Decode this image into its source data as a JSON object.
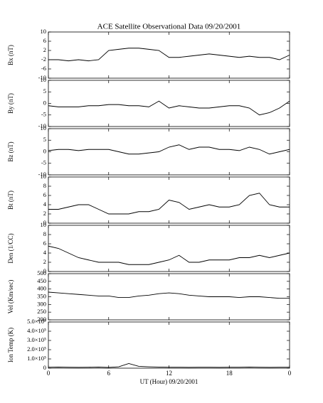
{
  "chart_data": [
    {
      "type": "line",
      "title": "ACE Satellite Observational Data  09/20/2001",
      "ylabel": "Bx (nT)",
      "color": "#000000",
      "x": [
        0,
        1,
        2,
        3,
        4,
        5,
        6,
        7,
        8,
        9,
        10,
        11,
        12,
        13,
        14,
        15,
        16,
        17,
        18,
        19,
        20,
        21,
        22,
        23,
        24
      ],
      "values": [
        -2,
        -2,
        -2.5,
        -2,
        -2.5,
        -2,
        2,
        2.5,
        3,
        3,
        2.5,
        2,
        -1,
        -1,
        -0.5,
        0,
        0.5,
        0,
        -0.5,
        -1,
        -0.5,
        -1,
        -1,
        -2,
        0
      ],
      "xlim": [
        0,
        24
      ],
      "ylim": [
        -10,
        10
      ],
      "yticks": [
        -10,
        -6,
        -2,
        2,
        6,
        10
      ]
    },
    {
      "type": "line",
      "ylabel": "By (nT)",
      "color": "#000000",
      "x": [
        0,
        1,
        2,
        3,
        4,
        5,
        6,
        7,
        8,
        9,
        10,
        11,
        12,
        13,
        14,
        15,
        16,
        17,
        18,
        19,
        20,
        21,
        22,
        23,
        24
      ],
      "values": [
        -1,
        -1.5,
        -1.5,
        -1.5,
        -1,
        -1,
        -0.5,
        -0.5,
        -1,
        -1,
        -1.5,
        1,
        -2,
        -1,
        -1.5,
        -2,
        -2,
        -1.5,
        -1,
        -1,
        -2,
        -5,
        -4,
        -2,
        1
      ],
      "xlim": [
        0,
        24
      ],
      "ylim": [
        -10,
        10
      ],
      "yticks": [
        -10,
        -5,
        0,
        5,
        10
      ]
    },
    {
      "type": "line",
      "ylabel": "Bz (nT)",
      "color": "#000000",
      "x": [
        0,
        1,
        2,
        3,
        4,
        5,
        6,
        7,
        8,
        9,
        10,
        11,
        12,
        13,
        14,
        15,
        16,
        17,
        18,
        19,
        20,
        21,
        22,
        23,
        24
      ],
      "values": [
        0.5,
        1,
        1,
        0.5,
        1,
        1,
        1,
        0,
        -1,
        -1,
        -0.5,
        0,
        2,
        3,
        1,
        2,
        2,
        1,
        1,
        0.5,
        2,
        1,
        -1,
        0,
        1
      ],
      "xlim": [
        0,
        24
      ],
      "ylim": [
        -10,
        10
      ],
      "yticks": [
        -10,
        -5,
        0,
        5,
        10
      ]
    },
    {
      "type": "line",
      "ylabel": "Bt (nT)",
      "color": "#000000",
      "x": [
        0,
        1,
        2,
        3,
        4,
        5,
        6,
        7,
        8,
        9,
        10,
        11,
        12,
        13,
        14,
        15,
        16,
        17,
        18,
        19,
        20,
        21,
        22,
        23,
        24
      ],
      "values": [
        3,
        3,
        3.5,
        4,
        4,
        3,
        2,
        2,
        2,
        2.5,
        2.5,
        3,
        5,
        4.5,
        3,
        3.5,
        4,
        3.5,
        3.5,
        4,
        6,
        6.5,
        4,
        3.5,
        3.5
      ],
      "xlim": [
        0,
        24
      ],
      "ylim": [
        0,
        10
      ],
      "yticks": [
        0,
        2,
        4,
        6,
        8,
        10
      ]
    },
    {
      "type": "line",
      "ylabel": "Den (1/CC)",
      "color": "#000000",
      "x": [
        0,
        1,
        2,
        3,
        4,
        5,
        6,
        7,
        8,
        9,
        10,
        11,
        12,
        13,
        14,
        15,
        16,
        17,
        18,
        19,
        20,
        21,
        22,
        23,
        24
      ],
      "values": [
        5.5,
        5,
        4,
        3,
        2.5,
        2,
        2,
        2,
        1.5,
        1.5,
        1.5,
        2,
        2.5,
        3.5,
        2,
        2,
        2.5,
        2.5,
        2.5,
        3,
        3,
        3.5,
        3,
        3.5,
        4
      ],
      "xlim": [
        0,
        24
      ],
      "ylim": [
        0,
        10
      ],
      "yticks": [
        0,
        2,
        4,
        6,
        8,
        10
      ]
    },
    {
      "type": "line",
      "ylabel": "Vel (Km/sec)",
      "color": "#000000",
      "x": [
        0,
        1,
        2,
        3,
        4,
        5,
        6,
        7,
        8,
        9,
        10,
        11,
        12,
        13,
        14,
        15,
        16,
        17,
        18,
        19,
        20,
        21,
        22,
        23,
        24
      ],
      "values": [
        380,
        375,
        370,
        365,
        360,
        355,
        355,
        345,
        345,
        355,
        360,
        370,
        375,
        370,
        360,
        355,
        350,
        350,
        350,
        345,
        350,
        350,
        345,
        340,
        340
      ],
      "xlim": [
        0,
        24
      ],
      "ylim": [
        200,
        500
      ],
      "yticks": [
        200,
        250,
        300,
        350,
        400,
        450,
        500
      ]
    },
    {
      "type": "line",
      "ylabel": "Ion Temp (K)",
      "xlabel": "UT (Hour)  09/20/2001",
      "color": "#000000",
      "x": [
        0,
        1,
        2,
        3,
        4,
        5,
        6,
        7,
        8,
        9,
        10,
        11,
        12,
        13,
        14,
        15,
        16,
        17,
        18,
        19,
        20,
        21,
        22,
        23,
        24
      ],
      "values": [
        10000,
        12000,
        10000,
        9000,
        10000,
        12000,
        8000,
        15000,
        50000,
        20000,
        15000,
        12000,
        10000,
        10000,
        9000,
        10000,
        10000,
        9000,
        10000,
        10000,
        12000,
        10000,
        9000,
        10000,
        10000
      ],
      "xlim": [
        0,
        24
      ],
      "ylim": [
        0,
        500000
      ],
      "yticks": [
        0,
        {
          "value": 100000,
          "label": "1.0×10⁵"
        },
        {
          "value": 200000,
          "label": "2.0×10⁵"
        },
        {
          "value": 300000,
          "label": "3.0×10⁵"
        },
        {
          "value": 400000,
          "label": "4.0×10⁵"
        },
        {
          "value": 500000,
          "label": "5.0×10⁵"
        }
      ],
      "xticks": [
        0,
        6,
        12,
        18,
        {
          "value": 24,
          "label": "0"
        }
      ]
    }
  ]
}
